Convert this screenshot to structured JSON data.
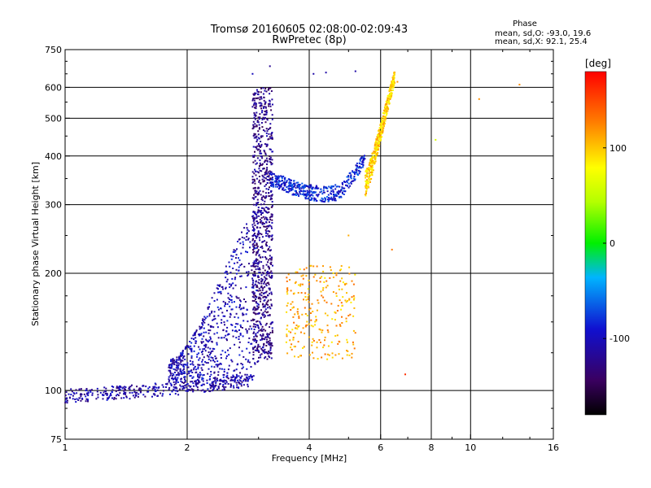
{
  "chart_data": {
    "type": "scatter",
    "title": "Tromsø 20160605 02:08:00-02:09:43",
    "subtitle": "RwPretec (8p)",
    "xlabel": "Frequency [MHz]",
    "ylabel": "Stationary phase Virtual Height [km]",
    "x_scale": "log",
    "y_scale": "log",
    "xlim": [
      1,
      16
    ],
    "ylim": [
      75,
      750
    ],
    "x_ticks": [
      1,
      2,
      4,
      6,
      8,
      10,
      16
    ],
    "y_ticks": [
      75,
      100,
      200,
      300,
      400,
      500,
      600,
      750
    ],
    "x_tick_labels": [
      "1",
      "2",
      "4",
      "6",
      "8",
      "10",
      "16"
    ],
    "y_tick_labels": [
      "75",
      "100",
      "200",
      "300",
      "400",
      "500",
      "600",
      "750"
    ],
    "grid": true,
    "stats": {
      "title": "Phase",
      "line_o": "mean, sd,O: -93.0, 19.6",
      "line_x": "mean, sd,X:  92.1, 25.4"
    },
    "colorbar": {
      "label": "[deg]",
      "range": [
        -180,
        180
      ],
      "ticks": [
        100,
        0,
        -100
      ],
      "tick_labels": [
        "100",
        "0",
        "-100"
      ]
    },
    "series_description": [
      {
        "segment": "low-layer trace",
        "freq_range": [
          1.0,
          2.9
        ],
        "height_range": [
          95,
          115
        ],
        "phase": -110
      },
      {
        "segment": "rising E/F1 region",
        "freq_range": [
          1.8,
          3.0
        ],
        "height_range": [
          110,
          300
        ],
        "phase": -105
      },
      {
        "segment": "vertical spread near 3.1 MHz",
        "freq_range": [
          2.9,
          3.25
        ],
        "height_range": [
          120,
          600
        ],
        "phase": -125
      },
      {
        "segment": "F-layer trace",
        "freq_range": [
          3.2,
          5.5
        ],
        "height_range": [
          300,
          380
        ],
        "phase": -85
      },
      {
        "segment": "F-layer cusp",
        "freq_range": [
          5.5,
          6.5
        ],
        "height_range": [
          340,
          650
        ],
        "phase": 95
      },
      {
        "segment": "scattered mid-band echoes",
        "freq_range": [
          3.5,
          5.2
        ],
        "height_range": [
          120,
          210
        ],
        "phase": 110
      }
    ]
  }
}
